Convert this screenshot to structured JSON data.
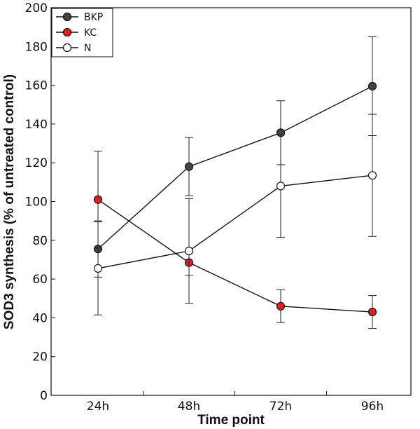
{
  "chart_data": {
    "type": "line",
    "title": "",
    "xlabel": "Time point",
    "ylabel": "SOD3 synthesis (% of untreated control)",
    "categories": [
      "24h",
      "48h",
      "72h",
      "96h"
    ],
    "ylim": [
      0,
      200
    ],
    "yticks": [
      0,
      20,
      40,
      60,
      80,
      100,
      120,
      140,
      160,
      180,
      200
    ],
    "grid": false,
    "legend_position": "top-left",
    "series": [
      {
        "name": "BKP",
        "marker_fill": "#444444",
        "values": [
          75.5,
          118,
          135.5,
          159.5
        ],
        "error": [
          14.5,
          15,
          16.5,
          25.5
        ]
      },
      {
        "name": "KC",
        "marker_fill": "#e0201a",
        "values": [
          101,
          68.5,
          46,
          43
        ],
        "error": [
          25,
          6.5,
          8.5,
          8.5
        ]
      },
      {
        "name": "N",
        "marker_fill": "#ffffff",
        "values": [
          65.5,
          74.5,
          108,
          113.5
        ],
        "error": [
          24,
          27,
          26.5,
          31.5
        ]
      }
    ]
  }
}
